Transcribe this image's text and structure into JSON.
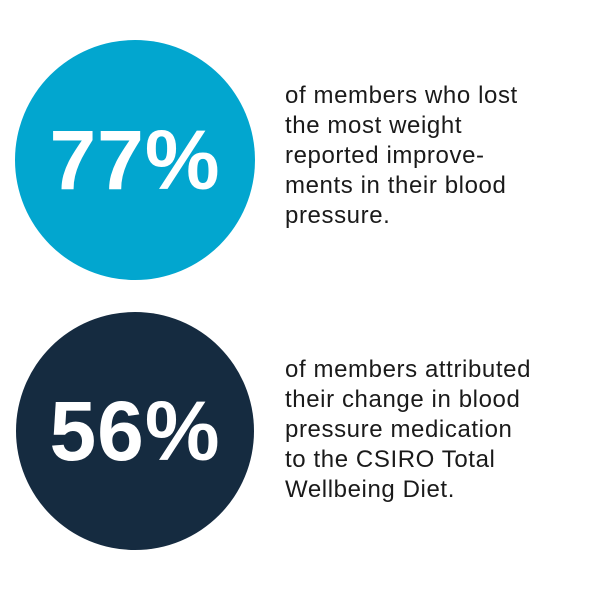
{
  "stats": [
    {
      "value": "77%",
      "description": "of members who lost\nthe most weight\nreported improve-\nments in their blood\npressure.",
      "circle_color": "#02a6cf"
    },
    {
      "value": "56%",
      "description": "of members attributed\ntheir change in blood\npressure medication\nto the CSIRO Total\nWellbeing Diet.",
      "circle_color": "#152b40"
    }
  ]
}
